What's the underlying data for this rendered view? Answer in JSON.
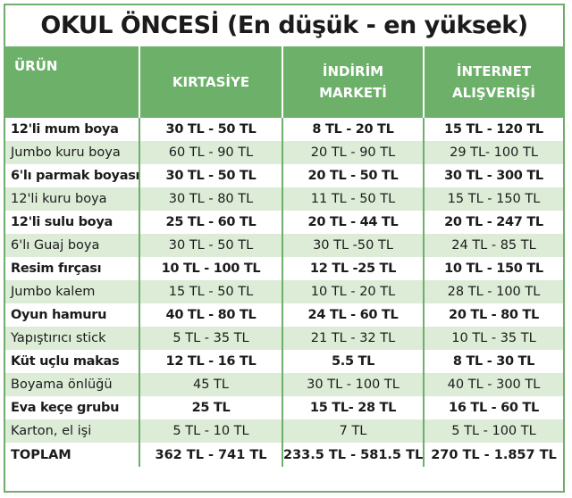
{
  "title": "OKUL ÖNCESİ (En düşük - en yüksek)",
  "columns": [
    "ÜRÜN",
    "KIRTASİYE",
    "İNDİRİM MARKETİ",
    "İNTERNET ALIŞVERİŞİ"
  ],
  "rows": [
    {
      "name": "12'li mum boya",
      "kirtasiye": "30 TL - 50 TL",
      "indirim": "8 TL - 20 TL",
      "internet": "15 TL - 120 TL"
    },
    {
      "name": "Jumbo kuru boya",
      "kirtasiye": "60 TL - 90 TL",
      "indirim": "20 TL - 90 TL",
      "internet": "29 TL- 100 TL"
    },
    {
      "name": "6'lı parmak boyası",
      "kirtasiye": "30 TL - 50 TL",
      "indirim": "20 TL - 50 TL",
      "internet": "30 TL - 300 TL"
    },
    {
      "name": "12'li kuru boya",
      "kirtasiye": "30 TL - 80 TL",
      "indirim": "11 TL - 50 TL",
      "internet": "15 TL - 150 TL"
    },
    {
      "name": "12'li sulu boya",
      "kirtasiye": "25 TL - 60 TL",
      "indirim": "20 TL - 44 TL",
      "internet": "20 TL - 247 TL"
    },
    {
      "name": "6'lı Guaj boya",
      "kirtasiye": "30 TL - 50 TL",
      "indirim": "30 TL -50 TL",
      "internet": "24 TL - 85 TL"
    },
    {
      "name": "Resim fırçası",
      "kirtasiye": "10 TL - 100 TL",
      "indirim": "12 TL -25 TL",
      "internet": "10 TL - 150 TL"
    },
    {
      "name": "Jumbo kalem",
      "kirtasiye": "15 TL - 50 TL",
      "indirim": "10 TL - 20 TL",
      "internet": "28 TL - 100 TL"
    },
    {
      "name": "Oyun hamuru",
      "kirtasiye": "40 TL - 80 TL",
      "indirim": "24 TL - 60 TL",
      "internet": "20 TL - 80 TL"
    },
    {
      "name": "Yapıştırıcı stick",
      "kirtasiye": "5 TL - 35 TL",
      "indirim": "21 TL - 32 TL",
      "internet": "10 TL - 35 TL"
    },
    {
      "name": "Küt uçlu makas",
      "kirtasiye": "12 TL - 16 TL",
      "indirim": "5.5 TL",
      "internet": "8 TL - 30 TL"
    },
    {
      "name": "Boyama önlüğü",
      "kirtasiye": "45 TL",
      "indirim": "30 TL - 100 TL",
      "internet": "40 TL - 300 TL"
    },
    {
      "name": "Eva keçe grubu",
      "kirtasiye": "25 TL",
      "indirim": "15 TL- 28 TL",
      "internet": "16 TL - 60 TL"
    },
    {
      "name": "Karton, el işi",
      "kirtasiye": "5 TL - 10 TL",
      "indirim": "7 TL",
      "internet": "5 TL - 100 TL"
    }
  ],
  "total": {
    "name": "TOPLAM",
    "kirtasiye": "362 TL - 741 TL",
    "indirim": "233.5 TL - 581.5 TL",
    "internet": "270 TL - 1.857 TL"
  }
}
